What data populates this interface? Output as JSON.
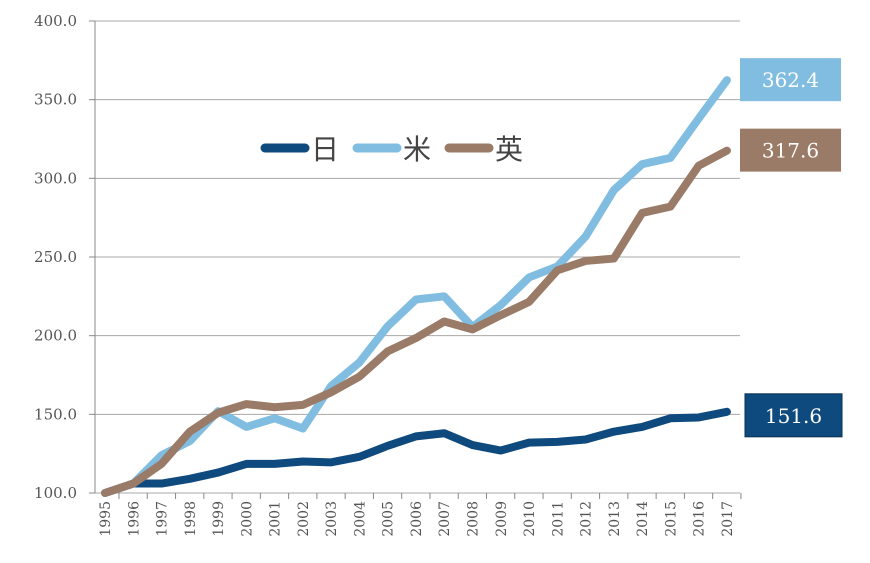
{
  "chart_data": {
    "type": "line",
    "title": "",
    "xlabel": "",
    "ylabel": "",
    "x": [
      1995,
      1996,
      1997,
      1998,
      1999,
      2000,
      2001,
      2002,
      2003,
      2004,
      2005,
      2006,
      2007,
      2008,
      2009,
      2010,
      2011,
      2012,
      2013,
      2014,
      2015,
      2016,
      2017
    ],
    "ylim": [
      100,
      400
    ],
    "yticks": [
      "100.0",
      "150.0",
      "200.0",
      "250.0",
      "300.0",
      "350.0",
      "400.0"
    ],
    "grid": true,
    "legend": "upper-left-center",
    "series": [
      {
        "name": "日",
        "color": "#0e4a7d",
        "end_label": "151.6",
        "values": [
          100,
          106,
          106,
          109,
          113,
          118.5,
          118.5,
          120,
          119.5,
          123,
          130,
          136,
          138,
          130.5,
          127,
          132,
          132.5,
          134,
          139,
          142,
          147.5,
          148,
          151.6
        ]
      },
      {
        "name": "米",
        "color": "#80bde1",
        "end_label": "362.4",
        "values": [
          100,
          106,
          124,
          133,
          152,
          142,
          147.5,
          141,
          168,
          183,
          206,
          223,
          225,
          205.5,
          219.5,
          237,
          244,
          263,
          292.5,
          309,
          313,
          338,
          362.4
        ]
      },
      {
        "name": "英",
        "color": "#9a7b68",
        "end_label": "317.6",
        "values": [
          100,
          106,
          118.5,
          139,
          151,
          156.5,
          154.5,
          156,
          164,
          174,
          190,
          198.5,
          209,
          204,
          213,
          221.5,
          241.5,
          247.5,
          249,
          278,
          282,
          308,
          317.6
        ]
      }
    ]
  }
}
